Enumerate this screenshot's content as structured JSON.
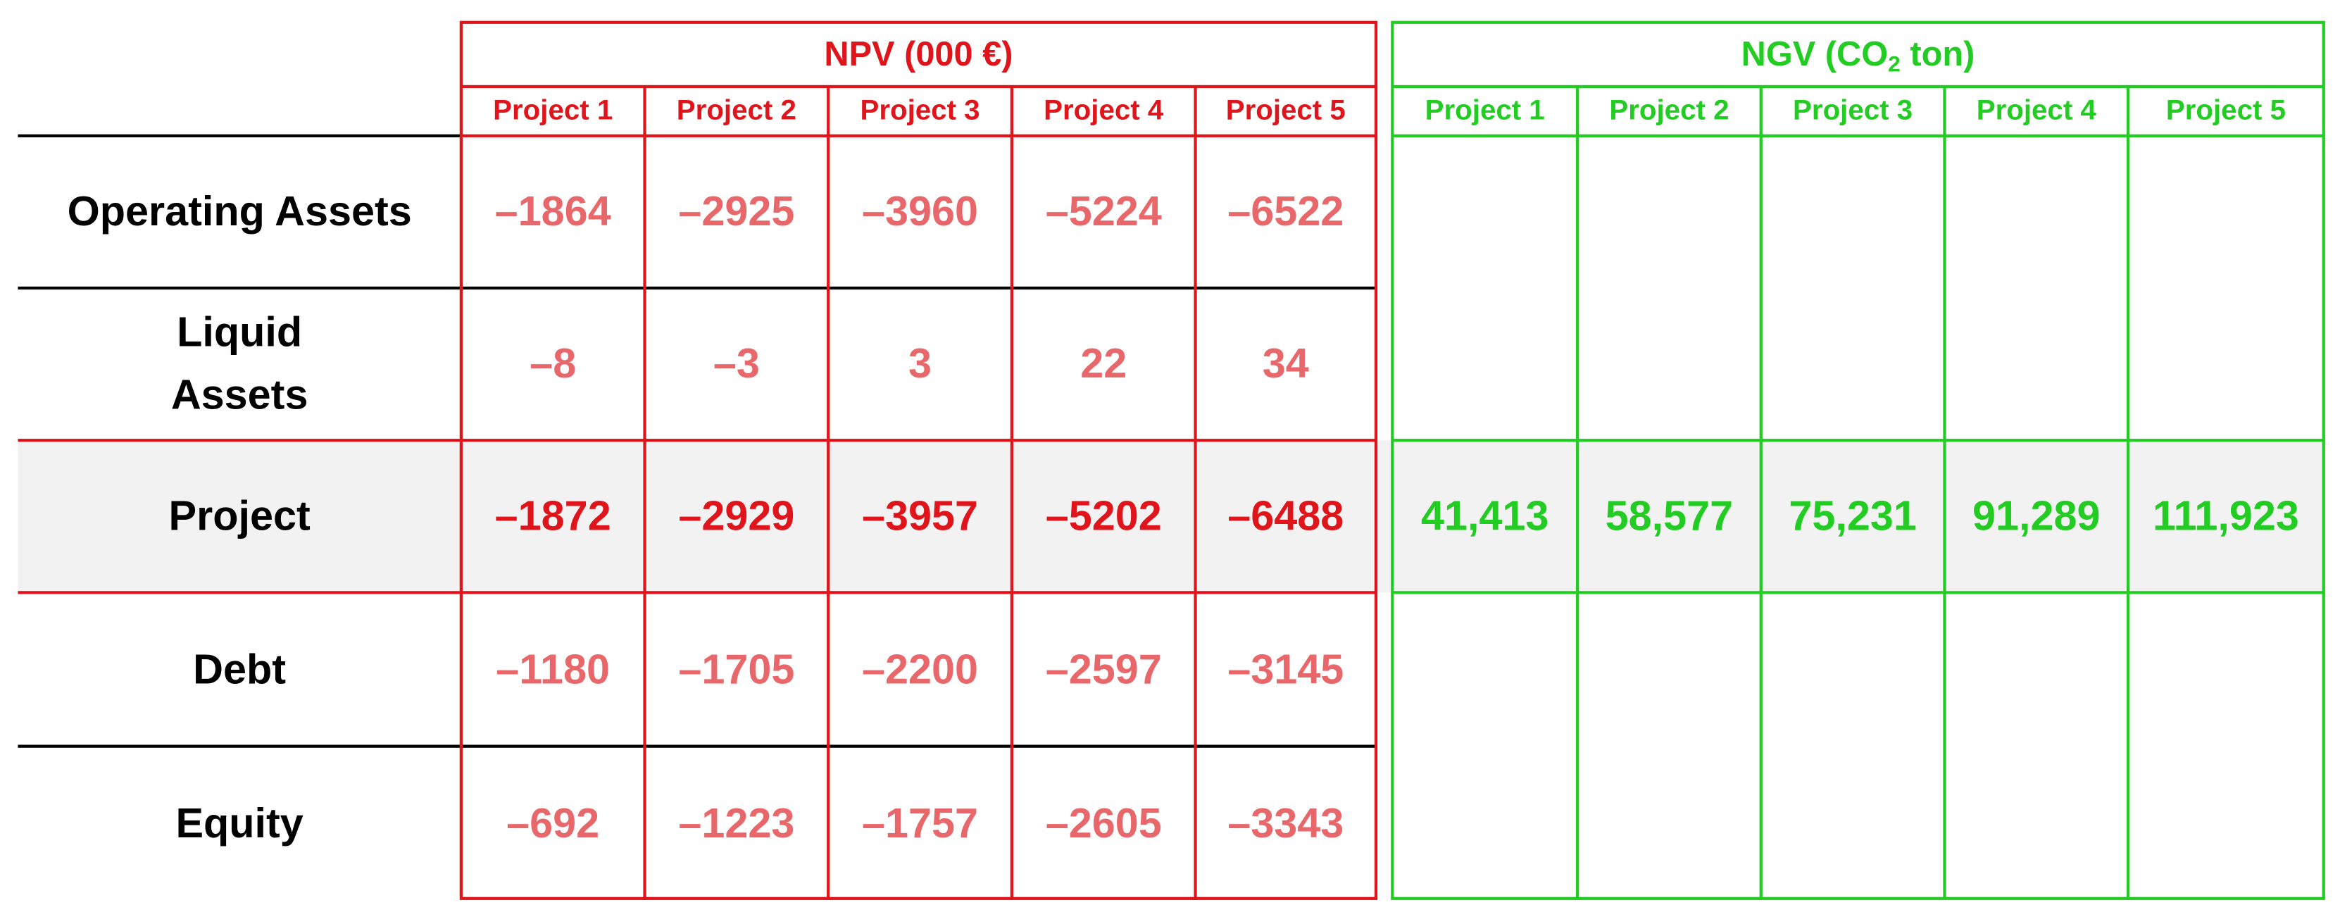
{
  "npv": {
    "title": "NPV (000 €)",
    "columns": [
      "Project 1",
      "Project 2",
      "Project 3",
      "Project 4",
      "Project 5"
    ]
  },
  "ngv": {
    "title": "NGV (CO",
    "title_subscript": "2",
    "title_suffix": " ton)",
    "columns": [
      "Project 1",
      "Project 2",
      "Project 3",
      "Project 4",
      "Project 5"
    ]
  },
  "rows": [
    {
      "label": "Operating Assets",
      "npv": [
        "–1864",
        "–2925",
        "–3960",
        "–5224",
        "–6522"
      ]
    },
    {
      "label": "Liquid Assets",
      "npv": [
        "–8",
        "–3",
        "3",
        "22",
        "34"
      ]
    },
    {
      "label": "Project",
      "npv": [
        "–1872",
        "–2929",
        "–3957",
        "–5202",
        "–6488"
      ],
      "ngv": [
        "41,413",
        "58,577",
        "75,231",
        "91,289",
        "111,923"
      ]
    },
    {
      "label": "Debt",
      "npv": [
        "–1180",
        "–1705",
        "–2200",
        "–2597",
        "–3145"
      ]
    },
    {
      "label": "Equity",
      "npv": [
        "–692",
        "–1223",
        "–1757",
        "–2605",
        "–3343"
      ]
    }
  ]
}
